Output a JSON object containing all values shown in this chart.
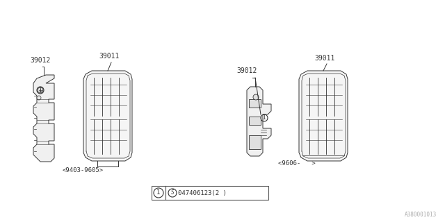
{
  "bg_color": "#ffffff",
  "part_labels_left": [
    "39012",
    "39011"
  ],
  "part_labels_right": [
    "39012",
    "39011"
  ],
  "caption_left": "<9403-9605>",
  "caption_right": "<9606-   >",
  "watermark": "A380001013",
  "line_color": "#333333",
  "text_color": "#333333",
  "small_font": 6.5,
  "label_font": 7
}
